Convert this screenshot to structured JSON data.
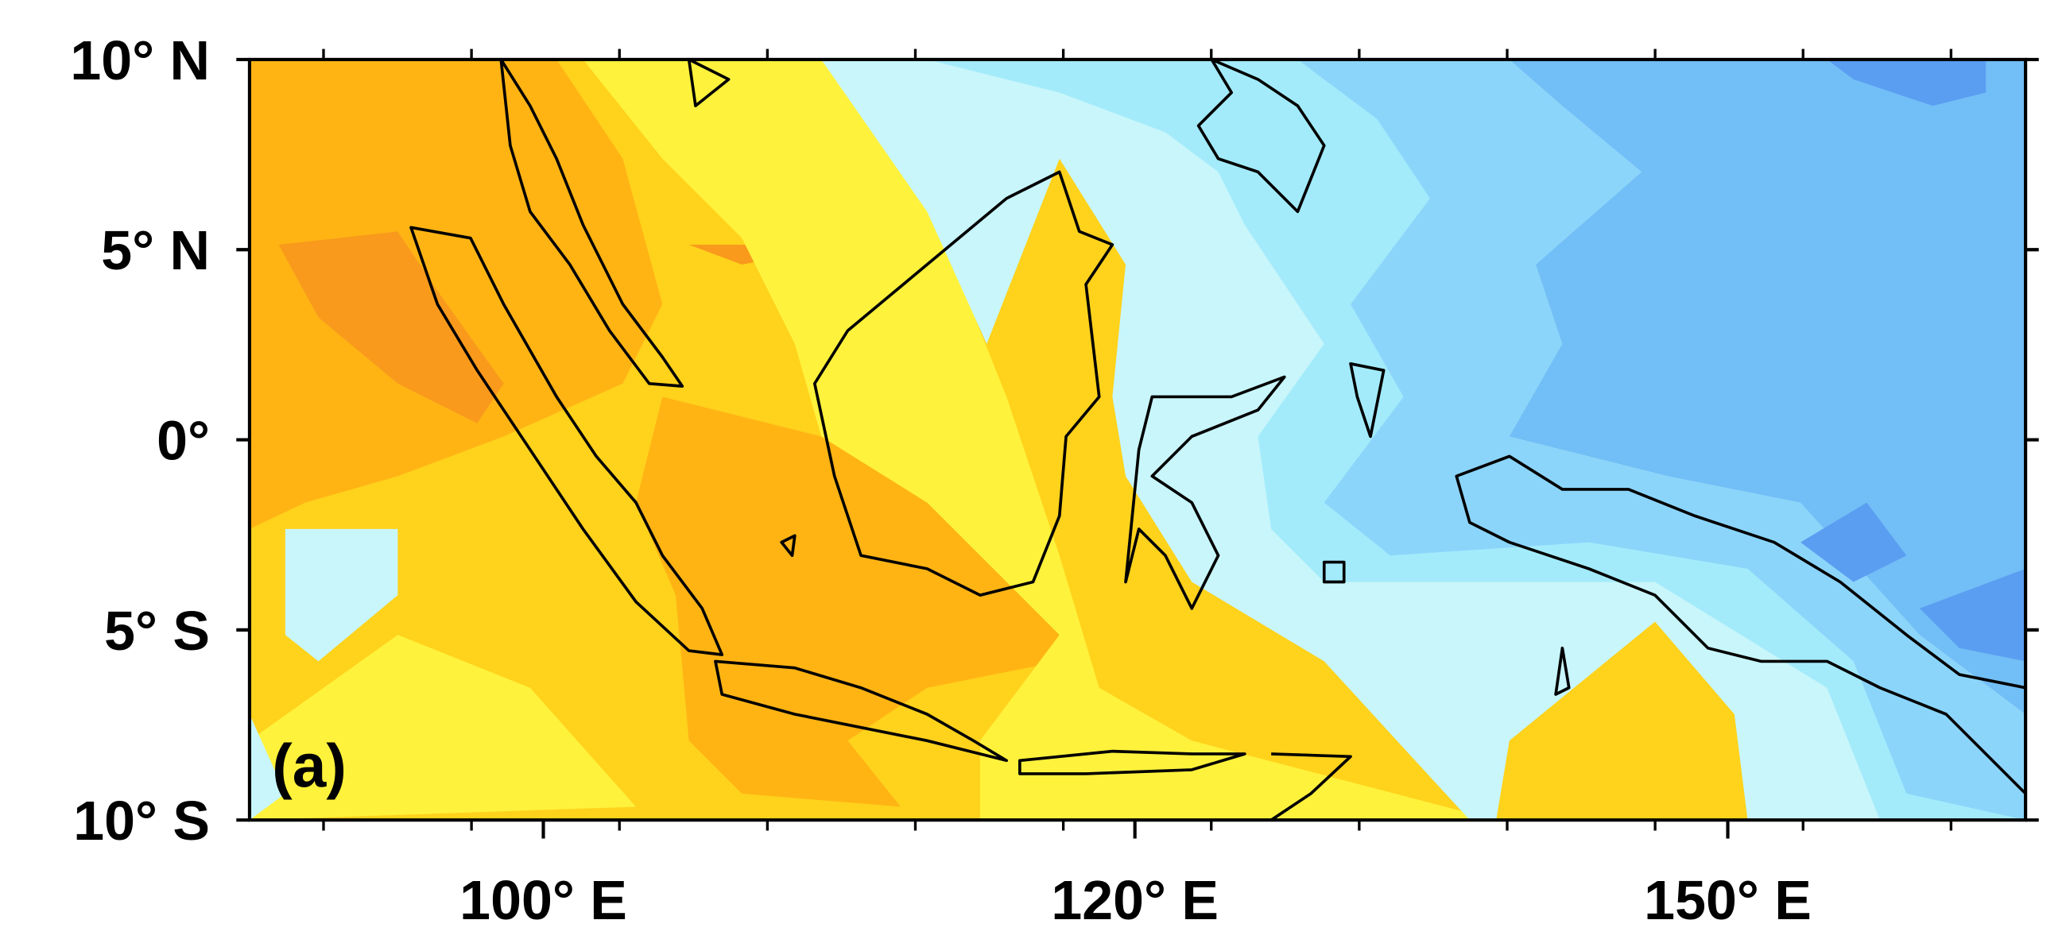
{
  "panel_label": "(a)",
  "y_axis_labels": [
    "10° N",
    "5° N",
    "0°",
    "5° S",
    "10° S"
  ],
  "x_axis_labels": [
    "100° E",
    "120° E",
    "150° E"
  ]
}
